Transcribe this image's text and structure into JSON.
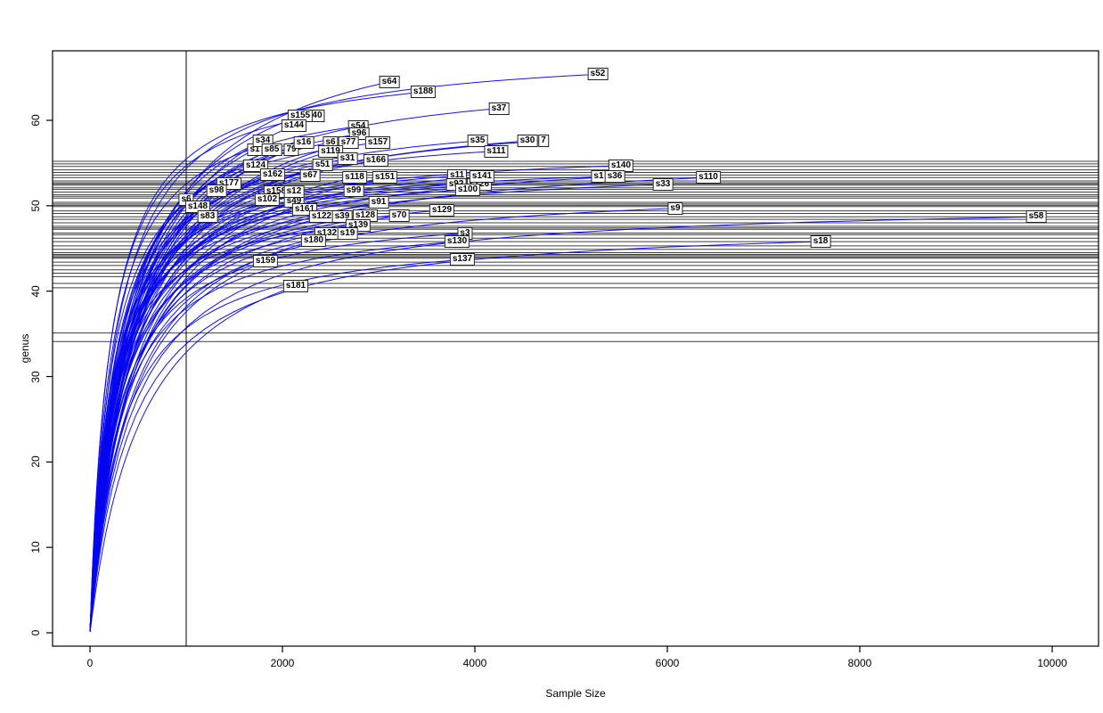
{
  "chart_data": {
    "type": "line",
    "title": "",
    "xlabel": "Sample Size",
    "ylabel": "genus",
    "xlim": [
      0,
      10480
    ],
    "ylim": [
      0,
      68
    ],
    "x_ticks": [
      0,
      2000,
      4000,
      6000,
      8000,
      10000
    ],
    "y_ticks": [
      0,
      10,
      20,
      30,
      40,
      50,
      60
    ],
    "grid": "off",
    "legend": "none",
    "curve_color": "#0505f0",
    "hline_color": "#3f3f3f",
    "vline_color": "#000000",
    "vline_x": 1000,
    "hlines_genus": [
      55.2,
      54.9,
      54.6,
      54.2,
      53.9,
      53.6,
      53.3,
      52.9,
      52.7,
      52.55,
      52.4,
      52.1,
      51.9,
      51.6,
      51.3,
      51.1,
      50.9,
      50.4,
      50.2,
      50.05,
      49.9,
      49.4,
      49.1,
      48.7,
      48.4,
      48.0,
      47.6,
      47.4,
      47.25,
      46.8,
      46.6,
      46.2,
      45.8,
      45.3,
      44.9,
      44.5,
      44.3,
      44.15,
      44.0,
      43.85,
      43.4,
      43.0,
      42.5,
      42.1,
      41.7,
      40.9,
      40.4,
      35.1,
      34.1
    ],
    "samples": [
      {
        "label": "40",
        "x": 2361,
        "y": 60.5,
        "partial": true
      },
      {
        "label": "s6",
        "x": 2500,
        "y": 57.4,
        "partial": true
      },
      {
        "label": "7",
        "x": 4713,
        "y": 57.6,
        "partial": true
      },
      {
        "label": "s1",
        "x": 1713,
        "y": 56.6,
        "partial": true
      },
      {
        "label": "79",
        "x": 2093,
        "y": 56.6,
        "partial": true
      },
      {
        "label": "s1",
        "x": 5287,
        "y": 53.4,
        "partial": true
      },
      {
        "label": "s126",
        "x": 4046,
        "y": 52.5,
        "partial": true
      },
      {
        "label": "s158",
        "x": 1935,
        "y": 51.7,
        "partial": true
      },
      {
        "label": "s49",
        "x": 2120,
        "y": 50.5,
        "partial": true
      },
      {
        "label": "s64",
        "x": 3111,
        "y": 64.5
      },
      {
        "label": "s188",
        "x": 3463,
        "y": 63.3
      },
      {
        "label": "s52",
        "x": 5278,
        "y": 65.4
      },
      {
        "label": "s37",
        "x": 4250,
        "y": 61.4
      },
      {
        "label": "s155",
        "x": 2185,
        "y": 60.5
      },
      {
        "label": "s144",
        "x": 2120,
        "y": 59.4
      },
      {
        "label": "s54",
        "x": 2787,
        "y": 59.3
      },
      {
        "label": "s96",
        "x": 2796,
        "y": 58.4
      },
      {
        "label": "s34",
        "x": 1796,
        "y": 57.6
      },
      {
        "label": "s16",
        "x": 2222,
        "y": 57.4
      },
      {
        "label": "s77",
        "x": 2685,
        "y": 57.4
      },
      {
        "label": "s157",
        "x": 2991,
        "y": 57.4
      },
      {
        "label": "s35",
        "x": 4028,
        "y": 57.6
      },
      {
        "label": "s30",
        "x": 4546,
        "y": 57.6
      },
      {
        "label": "s85",
        "x": 1889,
        "y": 56.6
      },
      {
        "label": "s119",
        "x": 2500,
        "y": 56.4
      },
      {
        "label": "s111",
        "x": 4222,
        "y": 56.4
      },
      {
        "label": "s31",
        "x": 2676,
        "y": 55.5
      },
      {
        "label": "s166",
        "x": 2972,
        "y": 55.3
      },
      {
        "label": "s124",
        "x": 1722,
        "y": 54.7
      },
      {
        "label": "s51",
        "x": 2417,
        "y": 54.8
      },
      {
        "label": "s140",
        "x": 5518,
        "y": 54.7
      },
      {
        "label": "s162",
        "x": 1898,
        "y": 53.6
      },
      {
        "label": "s67",
        "x": 2287,
        "y": 53.5
      },
      {
        "label": "s118",
        "x": 2750,
        "y": 53.3
      },
      {
        "label": "s151",
        "x": 3065,
        "y": 53.3
      },
      {
        "label": "s11",
        "x": 3815,
        "y": 53.5
      },
      {
        "label": "s141",
        "x": 4074,
        "y": 53.4
      },
      {
        "label": "s36",
        "x": 5454,
        "y": 53.4
      },
      {
        "label": "s110",
        "x": 6426,
        "y": 53.3
      },
      {
        "label": "s177",
        "x": 1444,
        "y": 52.6
      },
      {
        "label": "s92",
        "x": 3806,
        "y": 52.5
      },
      {
        "label": "s33",
        "x": 5954,
        "y": 52.5
      },
      {
        "label": "s98",
        "x": 1315,
        "y": 51.8
      },
      {
        "label": "s12",
        "x": 2120,
        "y": 51.7
      },
      {
        "label": "s99",
        "x": 2741,
        "y": 51.8
      },
      {
        "label": "s100",
        "x": 3926,
        "y": 51.9
      },
      {
        "label": "s6",
        "x": 1000,
        "y": 50.7
      },
      {
        "label": "s102",
        "x": 1843,
        "y": 50.7
      },
      {
        "label": "s91",
        "x": 3000,
        "y": 50.4
      },
      {
        "label": "s148",
        "x": 1120,
        "y": 49.9
      },
      {
        "label": "s161",
        "x": 2231,
        "y": 49.6
      },
      {
        "label": "s129",
        "x": 3657,
        "y": 49.5
      },
      {
        "label": "s9",
        "x": 6083,
        "y": 49.7
      },
      {
        "label": "s83",
        "x": 1222,
        "y": 48.7
      },
      {
        "label": "s122",
        "x": 2407,
        "y": 48.7
      },
      {
        "label": "s39",
        "x": 2620,
        "y": 48.7
      },
      {
        "label": "s128",
        "x": 2861,
        "y": 48.8
      },
      {
        "label": "s70",
        "x": 3213,
        "y": 48.8
      },
      {
        "label": "s58",
        "x": 9833,
        "y": 48.7,
        "b": 420
      },
      {
        "label": "s139",
        "x": 2787,
        "y": 47.7
      },
      {
        "label": "s132",
        "x": 2463,
        "y": 46.8
      },
      {
        "label": "s19",
        "x": 2676,
        "y": 46.8
      },
      {
        "label": "s3",
        "x": 3898,
        "y": 46.8,
        "b": 280
      },
      {
        "label": "s180",
        "x": 2324,
        "y": 45.9
      },
      {
        "label": "s130",
        "x": 3815,
        "y": 45.8,
        "b": 300
      },
      {
        "label": "s18",
        "x": 7593,
        "y": 45.8,
        "b": 430
      },
      {
        "label": "s137",
        "x": 3870,
        "y": 43.7,
        "b": 330
      },
      {
        "label": "s159",
        "x": 1824,
        "y": 43.5,
        "b": 430
      },
      {
        "label": "s181",
        "x": 2139,
        "y": 40.6,
        "b": 560
      }
    ]
  }
}
